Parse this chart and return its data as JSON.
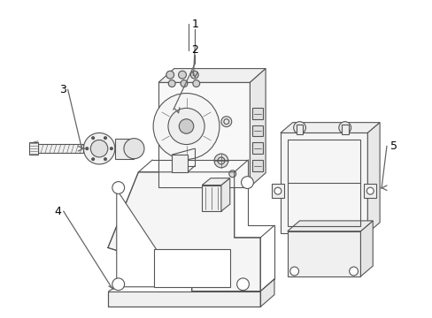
{
  "background_color": "#ffffff",
  "line_color": "#555555",
  "label_color": "#000000",
  "figsize": [
    4.89,
    3.6
  ],
  "dpi": 100
}
